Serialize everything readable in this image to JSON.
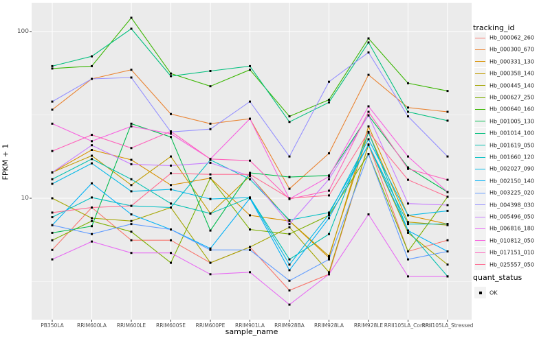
{
  "figure": {
    "background": "#FFFFFF",
    "panel_background": "#EBEBEB",
    "gridline_color": "#FFFFFF",
    "axis_text_color": "#4D4D4D",
    "tick_mark_color": "#333333",
    "point_color": "#000000"
  },
  "chart_data": {
    "type": "line",
    "title": "",
    "xlabel": "sample_name",
    "ylabel": "FPKM + 1",
    "y_scale": "log10",
    "y_tick_labels": [
      "100",
      "10"
    ],
    "y_ticks": [
      100,
      10
    ],
    "y_minor_ticks": [
      31.62,
      3.162
    ],
    "ylim": [
      1.9,
      140
    ],
    "grid": true,
    "legend_position": "right",
    "point_shape": "filled-square",
    "categories": [
      "PB350LA",
      "RRIM600LA",
      "RRIM600LE",
      "RRIM600SE",
      "RRIM600PE",
      "RRIM901LA",
      "RRIM928BA",
      "RRIM928LA",
      "RRIM928LE",
      "RRII105LA_Control",
      "RRII105LA_Stressed"
    ],
    "series": [
      {
        "name": "Hb_000062_260",
        "color": "#F8766D",
        "values": [
          4.9,
          8.8,
          5.6,
          5.6,
          4.1,
          5.1,
          2.8,
          3.5,
          21,
          4.8,
          5.6
        ]
      },
      {
        "name": "Hb_000300_670",
        "color": "#EA8331",
        "values": [
          34,
          52,
          59,
          32,
          28,
          30,
          11.4,
          18.6,
          55,
          35,
          33
        ]
      },
      {
        "name": "Hb_000331_130",
        "color": "#D89000",
        "values": [
          14.3,
          19.5,
          17,
          12,
          13.2,
          7.9,
          7.3,
          4.4,
          27,
          7.9,
          7.0
        ]
      },
      {
        "name": "Hb_000358_140",
        "color": "#C09B00",
        "values": [
          14.3,
          18,
          12,
          17.8,
          8.1,
          13.6,
          7.3,
          4.5,
          24.8,
          7.2,
          6.9
        ]
      },
      {
        "name": "Hb_000445_140",
        "color": "#A3A500",
        "values": [
          10.0,
          7.6,
          7.3,
          8.8,
          4.1,
          5.1,
          6.7,
          3.6,
          20.9,
          6.2,
          4.0
        ]
      },
      {
        "name": "Hb_000627_250",
        "color": "#7CAE00",
        "values": [
          5.6,
          7.3,
          6.3,
          4.1,
          13.2,
          6.5,
          6.1,
          7.9,
          18.4,
          4.8,
          10.2
        ]
      },
      {
        "name": "Hb_000640_160",
        "color": "#39B600",
        "values": [
          60,
          62,
          121,
          56,
          47,
          59,
          31,
          39,
          91,
          49,
          44
        ]
      },
      {
        "name": "Hb_001005_130",
        "color": "#00BB4E",
        "values": [
          6.2,
          6.8,
          28,
          23.3,
          6.4,
          14.2,
          13.4,
          13.7,
          31.4,
          15.3,
          10.9
        ]
      },
      {
        "name": "Hb_001014_100",
        "color": "#00BF7D",
        "values": [
          62,
          71,
          104,
          54,
          58,
          62,
          28.7,
          37.6,
          86,
          33,
          29.2
        ]
      },
      {
        "name": "Hb_001619_050",
        "color": "#00C0AF",
        "values": [
          13,
          17.2,
          13,
          9.3,
          8.1,
          10.1,
          4.3,
          6.1,
          24.8,
          6.4,
          3.4
        ]
      },
      {
        "name": "Hb_001660_120",
        "color": "#00BFC4",
        "values": [
          7.7,
          10.1,
          9,
          8.8,
          17.0,
          13.0,
          7.4,
          8.2,
          20.9,
          7.0,
          7.0
        ]
      },
      {
        "name": "Hb_002027_090",
        "color": "#00B8E7",
        "values": [
          12.2,
          16.2,
          11,
          11.3,
          9.9,
          10.1,
          4.0,
          8.0,
          22.6,
          7.9,
          8.4
        ]
      },
      {
        "name": "Hb_002150_140",
        "color": "#00B0F6",
        "values": [
          6.9,
          12.3,
          8.0,
          6.5,
          5.0,
          10.0,
          3.7,
          7.6,
          21,
          6.4,
          4.8
        ]
      },
      {
        "name": "Hb_003225_020",
        "color": "#619CFF",
        "values": [
          6.9,
          6.1,
          7.0,
          6.5,
          4.9,
          4.9,
          3.2,
          4.3,
          18.4,
          4.3,
          4.8
        ]
      },
      {
        "name": "Hb_004398_030",
        "color": "#9590FF",
        "values": [
          38,
          52,
          53,
          25,
          26,
          38,
          17.8,
          50,
          75,
          31,
          17.8
        ]
      },
      {
        "name": "Hb_005496_050",
        "color": "#C77CFF",
        "values": [
          14.3,
          20.8,
          16,
          15.7,
          16.3,
          13.6,
          7.0,
          13.0,
          31.4,
          9.3,
          9.1
        ]
      },
      {
        "name": "Hb_006816_180",
        "color": "#E76BF3",
        "values": [
          4.3,
          5.5,
          4.7,
          4.7,
          3.5,
          3.6,
          2.3,
          3.5,
          8.0,
          3.4,
          3.4
        ]
      },
      {
        "name": "Hb_010812_050",
        "color": "#F763E0",
        "values": [
          28,
          22,
          27,
          24.4,
          17.2,
          30,
          9.9,
          13.5,
          35.6,
          17.8,
          10.9
        ]
      },
      {
        "name": "Hb_017151_010",
        "color": "#FF62BC",
        "values": [
          19.2,
          24,
          20,
          25.2,
          17.2,
          16.8,
          9.9,
          11.1,
          33,
          15.0,
          12.9
        ]
      },
      {
        "name": "Hb_025557_050",
        "color": "#FF6C91",
        "values": [
          8.2,
          8.8,
          9,
          14.1,
          13.9,
          13.9,
          10.0,
          10.4,
          25,
          12.9,
          10.2
        ]
      }
    ]
  },
  "legends": {
    "tracking": {
      "title": "tracking_id"
    },
    "quant": {
      "title": "quant_status",
      "items": [
        {
          "label": "OK",
          "symbol": "black-square"
        }
      ]
    }
  }
}
